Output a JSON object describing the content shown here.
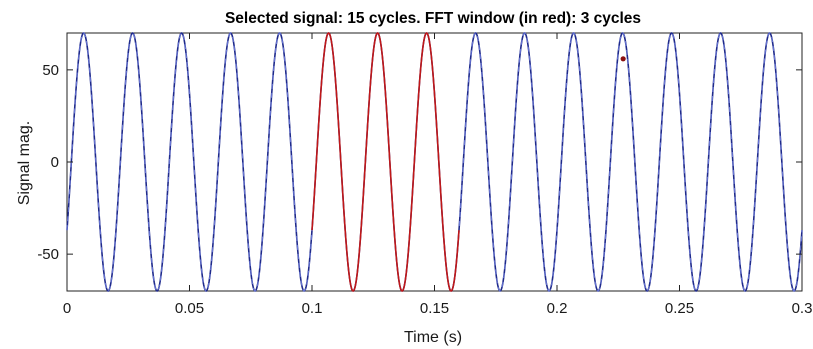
{
  "chart_data": {
    "type": "line",
    "title": "Selected signal: 15 cycles. FFT window (in red): 3 cycles",
    "xlabel": "Time (s)",
    "ylabel": "Signal mag.",
    "xlim": [
      0,
      0.3
    ],
    "ylim": [
      -70,
      70
    ],
    "xticks": [
      0,
      0.05,
      0.1,
      0.15,
      0.2,
      0.25,
      0.3
    ],
    "xtick_labels": [
      "0",
      "0.05",
      "0.1",
      "0.15",
      "0.2",
      "0.25",
      "0.3"
    ],
    "yticks": [
      -50,
      0,
      50
    ],
    "ytick_labels": [
      "-50",
      "0",
      "50"
    ],
    "grid": false,
    "legend": "none",
    "signal": {
      "function": "sine",
      "amplitude": 70,
      "frequency_hz": 50,
      "phase_note": "starts near -37 at t=0, rising; peaks at t≈0.007",
      "cycles_total": 15,
      "t_start": 0,
      "t_end": 0.3,
      "y_at_t0": -37
    },
    "series": [
      {
        "role": "full signal",
        "x_range": [
          0,
          0.3
        ],
        "color": "#1f2a8a",
        "style": "solid with dashed overlay"
      },
      {
        "role": "FFT window",
        "x_range": [
          0.1,
          0.16
        ],
        "cycles": 3,
        "color": "#c01818",
        "style": "solid"
      }
    ],
    "marker": {
      "x": 0.227,
      "y": 56,
      "color": "#8b1010"
    }
  }
}
